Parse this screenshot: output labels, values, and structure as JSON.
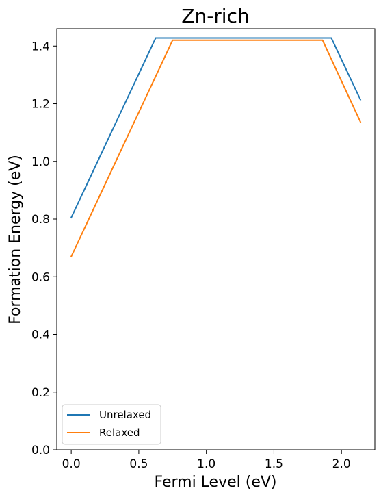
{
  "chart_data": {
    "type": "line",
    "title": "Zn-rich",
    "xlabel": "Fermi Level (eV)",
    "ylabel": "Formation Energy (eV)",
    "xlim": [
      -0.107,
      2.247
    ],
    "ylim": [
      0.0,
      1.46
    ],
    "xticks": [
      0.0,
      0.5,
      1.0,
      1.5,
      2.0
    ],
    "xtick_labels": [
      "0.0",
      "0.5",
      "1.0",
      "1.5",
      "2.0"
    ],
    "yticks": [
      0.0,
      0.2,
      0.4,
      0.6,
      0.8,
      1.0,
      1.2,
      1.4
    ],
    "ytick_labels": [
      "0.0",
      "0.2",
      "0.4",
      "0.6",
      "0.8",
      "1.0",
      "1.2",
      "1.4"
    ],
    "grid": false,
    "legend_position": "lower-left",
    "series": [
      {
        "name": "Unrelaxed",
        "color": "#1f77b4",
        "x": [
          0.0,
          0.625,
          1.925,
          2.14
        ],
        "y": [
          0.805,
          1.428,
          1.428,
          1.214
        ]
      },
      {
        "name": "Relaxed",
        "color": "#ff7f0e",
        "x": [
          0.0,
          0.75,
          1.86,
          2.14
        ],
        "y": [
          0.67,
          1.42,
          1.42,
          1.137
        ]
      }
    ]
  }
}
